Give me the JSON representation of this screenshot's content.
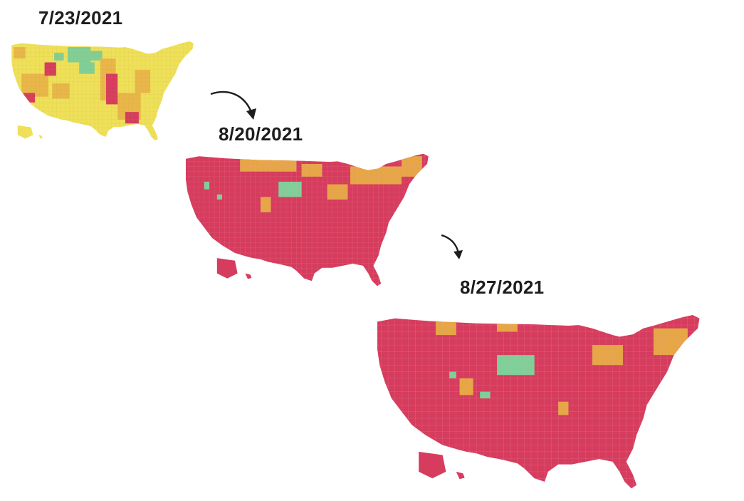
{
  "panels": [
    {
      "date": "7/23/2021",
      "colors": {
        "base": "#efe05a",
        "secondary": "#e9b64a",
        "high": "#d63c5d",
        "low": "#7fcf98"
      }
    },
    {
      "date": "8/20/2021",
      "colors": {
        "base": "#d63c5d",
        "secondary": "#e6a646",
        "high": "#d63c5d",
        "low": "#7fcf98"
      }
    },
    {
      "date": "8/27/2021",
      "colors": {
        "base": "#d63c5d",
        "secondary": "#e6a646",
        "high": "#d63c5d",
        "low": "#7fcf98"
      }
    }
  ],
  "arrows": [
    {
      "icon": "curved-arrow-icon",
      "from": "7/23/2021",
      "to": "8/20/2021"
    },
    {
      "icon": "curved-arrow-icon",
      "from": "8/20/2021",
      "to": "8/27/2021"
    }
  ]
}
